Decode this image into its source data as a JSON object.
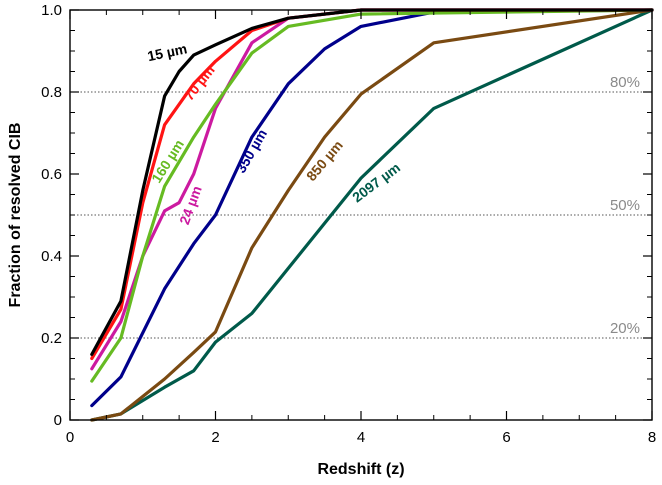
{
  "chart_data": {
    "type": "line",
    "title": "",
    "xlabel": "Redshift (z)",
    "ylabel": "Fraction of resolved CIB",
    "xlim": [
      0,
      8
    ],
    "ylim": [
      0,
      1.0
    ],
    "xticks": [
      0,
      2,
      4,
      6,
      8
    ],
    "xtick_labels": [
      "0",
      "2",
      "4",
      "6",
      "8"
    ],
    "yticks": [
      0,
      0.2,
      0.4,
      0.6,
      0.8,
      1.0
    ],
    "ytick_labels": [
      "0",
      "0.2",
      "0.4",
      "0.6",
      "0.8",
      "1.0"
    ],
    "grid": false,
    "reference_lines": [
      {
        "y": 0.2,
        "label": "20%"
      },
      {
        "y": 0.5,
        "label": "50%"
      },
      {
        "y": 0.8,
        "label": "80%"
      }
    ],
    "series": [
      {
        "name": "2097 µm",
        "color": "#005a4a",
        "label_at": {
          "x": 4.25,
          "y": 0.57,
          "angle": -37
        },
        "x": [
          0.3,
          0.7,
          1.3,
          1.7,
          2.0,
          2.5,
          3.0,
          3.5,
          4.0,
          5.0,
          8.0
        ],
        "y": [
          0.0,
          0.015,
          0.08,
          0.12,
          0.19,
          0.26,
          0.37,
          0.48,
          0.59,
          0.76,
          1.0
        ]
      },
      {
        "name": "850 µm",
        "color": "#7a4a12",
        "label_at": {
          "x": 3.55,
          "y": 0.625,
          "angle": -50
        },
        "x": [
          0.3,
          0.7,
          1.3,
          1.7,
          2.0,
          2.5,
          3.0,
          3.5,
          4.0,
          5.0,
          8.0
        ],
        "y": [
          0.0,
          0.015,
          0.1,
          0.165,
          0.215,
          0.42,
          0.56,
          0.69,
          0.795,
          0.92,
          1.0
        ]
      },
      {
        "name": "350 µm",
        "color": "#00008b",
        "label_at": {
          "x": 2.55,
          "y": 0.65,
          "angle": -60
        },
        "x": [
          0.3,
          0.7,
          1.3,
          1.7,
          2.0,
          2.5,
          3.0,
          3.5,
          4.0,
          5.0,
          8.0
        ],
        "y": [
          0.035,
          0.105,
          0.32,
          0.43,
          0.5,
          0.69,
          0.82,
          0.905,
          0.96,
          0.995,
          1.0
        ]
      },
      {
        "name": "24 µm",
        "color": "#cc1aa0",
        "label_at": {
          "x": 1.72,
          "y": 0.52,
          "angle": -70
        },
        "x": [
          0.3,
          0.7,
          1.0,
          1.3,
          1.5,
          1.7,
          2.0,
          2.5,
          3.0,
          4.0,
          8.0
        ],
        "y": [
          0.125,
          0.24,
          0.4,
          0.51,
          0.53,
          0.6,
          0.76,
          0.92,
          0.98,
          1.0,
          1.0
        ]
      },
      {
        "name": "160 µm",
        "color": "#66bb22",
        "label_at": {
          "x": 1.4,
          "y": 0.625,
          "angle": -58
        },
        "x": [
          0.3,
          0.7,
          1.0,
          1.3,
          1.7,
          2.0,
          2.5,
          3.0,
          4.0,
          8.0
        ],
        "y": [
          0.095,
          0.2,
          0.4,
          0.57,
          0.69,
          0.77,
          0.895,
          0.96,
          0.99,
          1.0
        ]
      },
      {
        "name": "70 µm",
        "color": "#ff1414",
        "label_at": {
          "x": 1.83,
          "y": 0.815,
          "angle": -52
        },
        "x": [
          0.3,
          0.7,
          1.0,
          1.3,
          1.7,
          2.0,
          2.5,
          3.0,
          4.0,
          8.0
        ],
        "y": [
          0.15,
          0.27,
          0.53,
          0.72,
          0.82,
          0.875,
          0.95,
          0.98,
          1.0,
          1.0
        ]
      },
      {
        "name": "15 µm",
        "color": "#000000",
        "label_at": {
          "x": 1.35,
          "y": 0.885,
          "angle": -12
        },
        "x": [
          0.3,
          0.7,
          1.0,
          1.3,
          1.5,
          1.7,
          2.0,
          2.5,
          3.0,
          4.0,
          8.0
        ],
        "y": [
          0.16,
          0.29,
          0.56,
          0.79,
          0.85,
          0.89,
          0.915,
          0.955,
          0.98,
          1.0,
          1.0
        ]
      }
    ]
  }
}
